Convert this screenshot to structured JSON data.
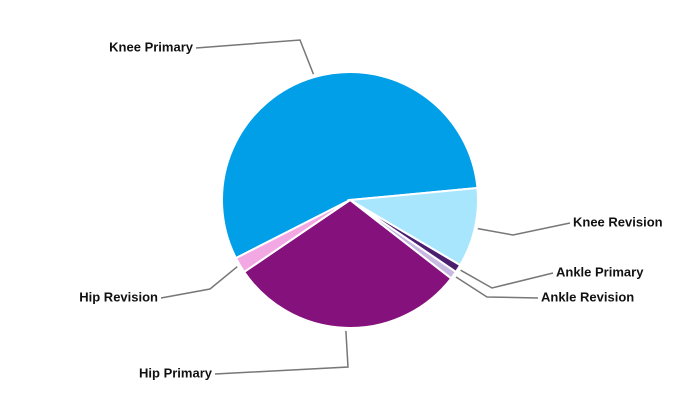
{
  "chart_data": {
    "type": "pie",
    "categories": [
      "Knee Primary",
      "Knee Revision",
      "Ankle Primary",
      "Ankle Revision",
      "Hip Primary",
      "Hip Revision"
    ],
    "values": [
      56,
      10,
      1,
      1,
      30,
      2
    ],
    "colors": [
      "#009fe8",
      "#a8e6fd",
      "#4b1f6f",
      "#c8b9e2",
      "#84117c",
      "#f2a9e3"
    ]
  }
}
